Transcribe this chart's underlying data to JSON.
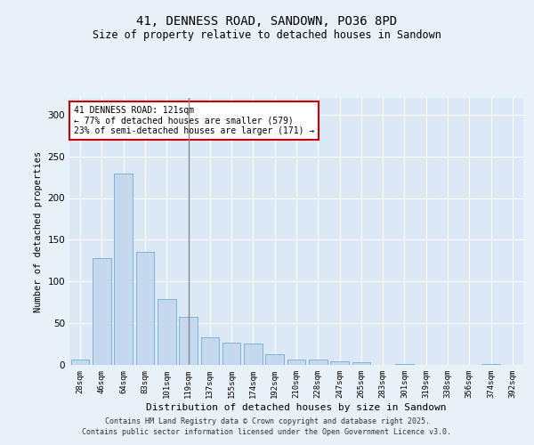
{
  "title1": "41, DENNESS ROAD, SANDOWN, PO36 8PD",
  "title2": "Size of property relative to detached houses in Sandown",
  "xlabel": "Distribution of detached houses by size in Sandown",
  "ylabel": "Number of detached properties",
  "categories": [
    "28sqm",
    "46sqm",
    "64sqm",
    "83sqm",
    "101sqm",
    "119sqm",
    "137sqm",
    "155sqm",
    "174sqm",
    "192sqm",
    "210sqm",
    "228sqm",
    "247sqm",
    "265sqm",
    "283sqm",
    "301sqm",
    "319sqm",
    "338sqm",
    "356sqm",
    "374sqm",
    "392sqm"
  ],
  "values": [
    6,
    128,
    229,
    136,
    79,
    58,
    33,
    27,
    26,
    13,
    6,
    6,
    4,
    3,
    0,
    1,
    0,
    0,
    0,
    1,
    0
  ],
  "bar_color": "#c5d8ee",
  "bar_edge_color": "#6aaed6",
  "highlight_index": 5,
  "annotation_text": "41 DENNESS ROAD: 121sqm\n← 77% of detached houses are smaller (579)\n23% of semi-detached houses are larger (171) →",
  "annotation_box_color": "#ffffff",
  "annotation_box_edge_color": "#cc0000",
  "ylim": [
    0,
    320
  ],
  "yticks": [
    0,
    50,
    100,
    150,
    200,
    250,
    300
  ],
  "bg_color": "#dce8f5",
  "fig_color": "#e8f0f8",
  "grid_color": "#ffffff",
  "footer1": "Contains HM Land Registry data © Crown copyright and database right 2025.",
  "footer2": "Contains public sector information licensed under the Open Government Licence v3.0."
}
